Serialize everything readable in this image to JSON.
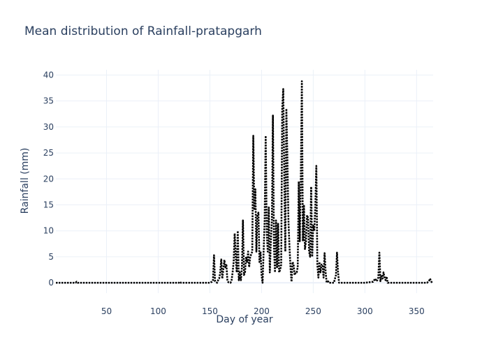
{
  "chart_data": {
    "type": "line",
    "title": "Mean distribution of Rainfall-pratapgarh",
    "xlabel": "Day of year",
    "ylabel": "Rainfall (mm)",
    "xlim": [
      1,
      366
    ],
    "ylim": [
      -2,
      41
    ],
    "x_ticks": [
      50,
      100,
      150,
      200,
      250,
      300,
      350
    ],
    "y_ticks": [
      0,
      5,
      10,
      15,
      20,
      25,
      30,
      35,
      40
    ],
    "grid": true,
    "legend": "none",
    "line_color": "#000000",
    "line_style": "dotted",
    "series": [
      {
        "points": [
          [
            1,
            0
          ],
          [
            20,
            0
          ],
          [
            21,
            0.2
          ],
          [
            22,
            0
          ],
          [
            120,
            0
          ],
          [
            121,
            0.2
          ],
          [
            122,
            0
          ],
          [
            150,
            0
          ],
          [
            152,
            0.2
          ],
          [
            153,
            0.5
          ],
          [
            154,
            5.3
          ],
          [
            155,
            0.3
          ],
          [
            157,
            0
          ],
          [
            158,
            0.5
          ],
          [
            159,
            0.8
          ],
          [
            160,
            2
          ],
          [
            161,
            4.5
          ],
          [
            162,
            0.8
          ],
          [
            163,
            2.5
          ],
          [
            164,
            4.4
          ],
          [
            165,
            3
          ],
          [
            166,
            3.4
          ],
          [
            167,
            0.3
          ],
          [
            168,
            0.1
          ],
          [
            170,
            0
          ],
          [
            171,
            0.5
          ],
          [
            172,
            2
          ],
          [
            173,
            4
          ],
          [
            174,
            9.5
          ],
          [
            175,
            5
          ],
          [
            176,
            2
          ],
          [
            177,
            10
          ],
          [
            178,
            0.5
          ],
          [
            179,
            2
          ],
          [
            180,
            0.5
          ],
          [
            181,
            3
          ],
          [
            182,
            12
          ],
          [
            183,
            1.5
          ],
          [
            184,
            2
          ],
          [
            185,
            5
          ],
          [
            186,
            4
          ],
          [
            187,
            6
          ],
          [
            188,
            3
          ],
          [
            189,
            5
          ],
          [
            190,
            5.5
          ],
          [
            191,
            6
          ],
          [
            192,
            28.3
          ],
          [
            193,
            14
          ],
          [
            194,
            18
          ],
          [
            195,
            6
          ],
          [
            196,
            13
          ],
          [
            197,
            13.5
          ],
          [
            198,
            4
          ],
          [
            199,
            6
          ],
          [
            200,
            1.5
          ],
          [
            201,
            0
          ],
          [
            202,
            6
          ],
          [
            203,
            12
          ],
          [
            204,
            28.3
          ],
          [
            205,
            10
          ],
          [
            206,
            6
          ],
          [
            207,
            14.5
          ],
          [
            208,
            2
          ],
          [
            209,
            8
          ],
          [
            210,
            12
          ],
          [
            211,
            32.2
          ],
          [
            212,
            7
          ],
          [
            213,
            2
          ],
          [
            214,
            12
          ],
          [
            215,
            3
          ],
          [
            216,
            11.5
          ],
          [
            217,
            2
          ],
          [
            218,
            2.5
          ],
          [
            219,
            3.5
          ],
          [
            220,
            33.5
          ],
          [
            221,
            37.3
          ],
          [
            222,
            20
          ],
          [
            223,
            6
          ],
          [
            224,
            33.5
          ],
          [
            225,
            24
          ],
          [
            226,
            12
          ],
          [
            227,
            7
          ],
          [
            228,
            3
          ],
          [
            229,
            0.2
          ],
          [
            230,
            4
          ],
          [
            231,
            3.5
          ],
          [
            232,
            1.5
          ],
          [
            233,
            2
          ],
          [
            234,
            2
          ],
          [
            235,
            3
          ],
          [
            236,
            19.5
          ],
          [
            237,
            8
          ],
          [
            238,
            20
          ],
          [
            239,
            38.8
          ],
          [
            240,
            8
          ],
          [
            241,
            15
          ],
          [
            242,
            6.5
          ],
          [
            243,
            8
          ],
          [
            244,
            13
          ],
          [
            245,
            12.5
          ],
          [
            246,
            6
          ],
          [
            247,
            5
          ],
          [
            248,
            18.5
          ],
          [
            249,
            5
          ],
          [
            250,
            11
          ],
          [
            251,
            10
          ],
          [
            252,
            14.5
          ],
          [
            253,
            22.5
          ],
          [
            254,
            3.5
          ],
          [
            255,
            1
          ],
          [
            256,
            4
          ],
          [
            257,
            2
          ],
          [
            258,
            3.5
          ],
          [
            259,
            3.5
          ],
          [
            260,
            1
          ],
          [
            261,
            5.7
          ],
          [
            262,
            2
          ],
          [
            263,
            0
          ],
          [
            264,
            0.5
          ],
          [
            265,
            0
          ],
          [
            270,
            0
          ],
          [
            272,
            1.5
          ],
          [
            273,
            5.8
          ],
          [
            274,
            2
          ],
          [
            275,
            0
          ],
          [
            300,
            0
          ],
          [
            308,
            0.2
          ],
          [
            309,
            0.5
          ],
          [
            310,
            0.8
          ],
          [
            311,
            0.3
          ],
          [
            312,
            0.5
          ],
          [
            313,
            1
          ],
          [
            314,
            5.8
          ],
          [
            315,
            0.3
          ],
          [
            316,
            1.5
          ],
          [
            317,
            0.8
          ],
          [
            318,
            2
          ],
          [
            319,
            1
          ],
          [
            320,
            0.5
          ],
          [
            321,
            1.2
          ],
          [
            322,
            0
          ],
          [
            325,
            0
          ],
          [
            360,
            0
          ],
          [
            362,
            0.3
          ],
          [
            363,
            0.8
          ],
          [
            364,
            0.3
          ],
          [
            365,
            0
          ]
        ]
      }
    ]
  }
}
